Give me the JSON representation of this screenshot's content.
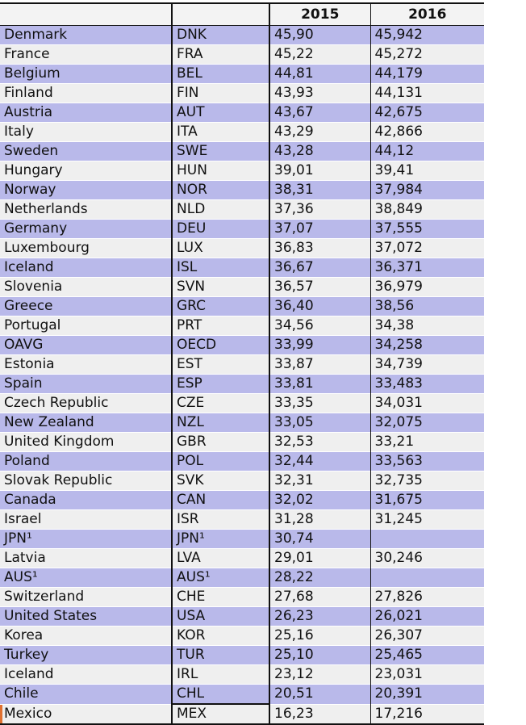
{
  "header": [
    "",
    "",
    "2015",
    "2016"
  ],
  "rows": [
    [
      "Denmark",
      "DNK",
      "45,90",
      "45,942"
    ],
    [
      "France",
      "FRA",
      "45,22",
      "45,272"
    ],
    [
      "Belgium",
      "BEL",
      "44,81",
      "44,179"
    ],
    [
      "Finland",
      "FIN",
      "43,93",
      "44,131"
    ],
    [
      "Austria",
      "AUT",
      "43,67",
      "42,675"
    ],
    [
      "Italy",
      "ITA",
      "43,29",
      "42,866"
    ],
    [
      "Sweden",
      "SWE",
      "43,28",
      "44,12"
    ],
    [
      "Hungary",
      "HUN",
      "39,01",
      "39,41"
    ],
    [
      "Norway",
      "NOR",
      "38,31",
      "37,984"
    ],
    [
      "Netherlands",
      "NLD",
      "37,36",
      "38,849"
    ],
    [
      "Germany",
      "DEU",
      "37,07",
      "37,555"
    ],
    [
      "Luxembourg",
      "LUX",
      "36,83",
      "37,072"
    ],
    [
      "Iceland",
      "ISL",
      "36,67",
      "36,371"
    ],
    [
      "Slovenia",
      "SVN",
      "36,57",
      "36,979"
    ],
    [
      "Greece",
      "GRC",
      "36,40",
      "38,56"
    ],
    [
      "Portugal",
      "PRT",
      "34,56",
      "34,38"
    ],
    [
      "OAVG",
      "OECD",
      "33,99",
      "34,258"
    ],
    [
      "Estonia",
      "EST",
      "33,87",
      "34,739"
    ],
    [
      "Spain",
      "ESP",
      "33,81",
      "33,483"
    ],
    [
      "Czech Republic",
      "CZE",
      "33,35",
      "34,031"
    ],
    [
      "New Zealand",
      "NZL",
      "33,05",
      "32,075"
    ],
    [
      "United Kingdom",
      "GBR",
      "32,53",
      "33,21"
    ],
    [
      "Poland",
      "POL",
      "32,44",
      "33,563"
    ],
    [
      "Slovak Republic",
      "SVK",
      "32,31",
      "32,735"
    ],
    [
      "Canada",
      "CAN",
      "32,02",
      "31,675"
    ],
    [
      "Israel",
      "ISR",
      "31,28",
      "31,245"
    ],
    [
      "JPN¹",
      "JPN¹",
      "30,74",
      ""
    ],
    [
      "Latvia",
      "LVA",
      "29,01",
      "30,246"
    ],
    [
      "AUS¹",
      "AUS¹",
      "28,22",
      ""
    ],
    [
      "Switzerland",
      "CHE",
      "27,68",
      "27,826"
    ],
    [
      "United States",
      "USA",
      "26,23",
      "26,021"
    ],
    [
      "Korea",
      "KOR",
      "25,16",
      "26,307"
    ],
    [
      "Turkey",
      "TUR",
      "25,10",
      "25,465"
    ],
    [
      "Iceland",
      "IRL",
      "23,12",
      "23,031"
    ],
    [
      "Chile",
      "CHL",
      "20,51",
      "20,391"
    ],
    [
      "Mexico",
      "MEX",
      "16,23",
      "17,216"
    ]
  ]
}
